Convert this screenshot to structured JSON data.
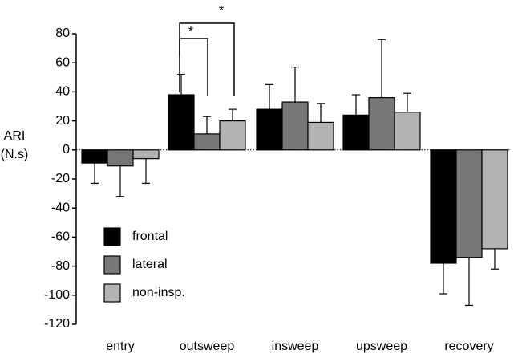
{
  "chart_data": {
    "type": "bar",
    "y_label_lines": [
      "ARI",
      "(N.s)"
    ],
    "categories": [
      "entry",
      "outsweep",
      "insweep",
      "upsweep",
      "recovery"
    ],
    "series": [
      {
        "name": "frontal",
        "color": "#000000",
        "values": [
          -9,
          38,
          28,
          24,
          -78
        ],
        "errors": [
          14,
          14,
          17,
          14,
          21
        ]
      },
      {
        "name": "lateral",
        "color": "#777777",
        "values": [
          -11,
          11,
          33,
          36,
          -74
        ],
        "errors": [
          21,
          12,
          24,
          40,
          33
        ]
      },
      {
        "name": "non-insp.",
        "color": "#b3b3b3",
        "values": [
          -6,
          20,
          19,
          26,
          -68
        ],
        "errors": [
          17,
          8,
          13,
          13,
          14
        ]
      }
    ],
    "ylim": [
      -120,
      80
    ],
    "yticks": [
      -120,
      -100,
      -80,
      -60,
      -40,
      -20,
      0,
      20,
      40,
      60,
      80
    ],
    "legend": "lower left",
    "annotations": [
      {
        "text": "*"
      },
      {
        "text": "*"
      }
    ]
  }
}
